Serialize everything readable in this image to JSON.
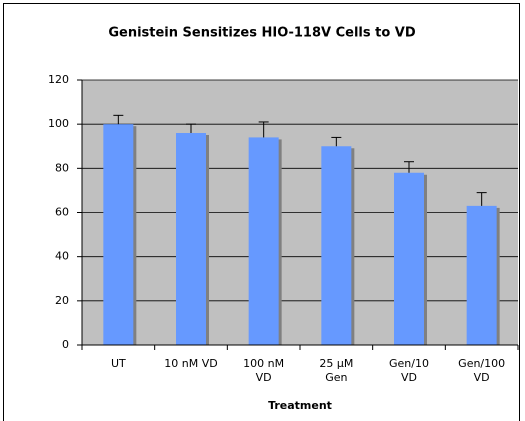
{
  "chart_data": {
    "type": "bar",
    "title": "Genistein Sensitizes HIO-118V Cells to VD",
    "x_label": "Treatment",
    "categories": [
      "UT",
      "10 nM VD",
      "100 nM\nVD",
      "25 µM\nGen",
      "Gen/10\nVD",
      "Gen/100\nVD"
    ],
    "values": [
      100,
      96,
      94,
      90,
      78,
      63
    ],
    "errors": [
      4,
      4,
      7,
      4,
      5,
      6
    ],
    "color": "#6699ff",
    "ylim": [
      0,
      120
    ],
    "yticks": [
      0,
      20,
      40,
      60,
      80,
      100,
      120
    ],
    "grid": true
  }
}
